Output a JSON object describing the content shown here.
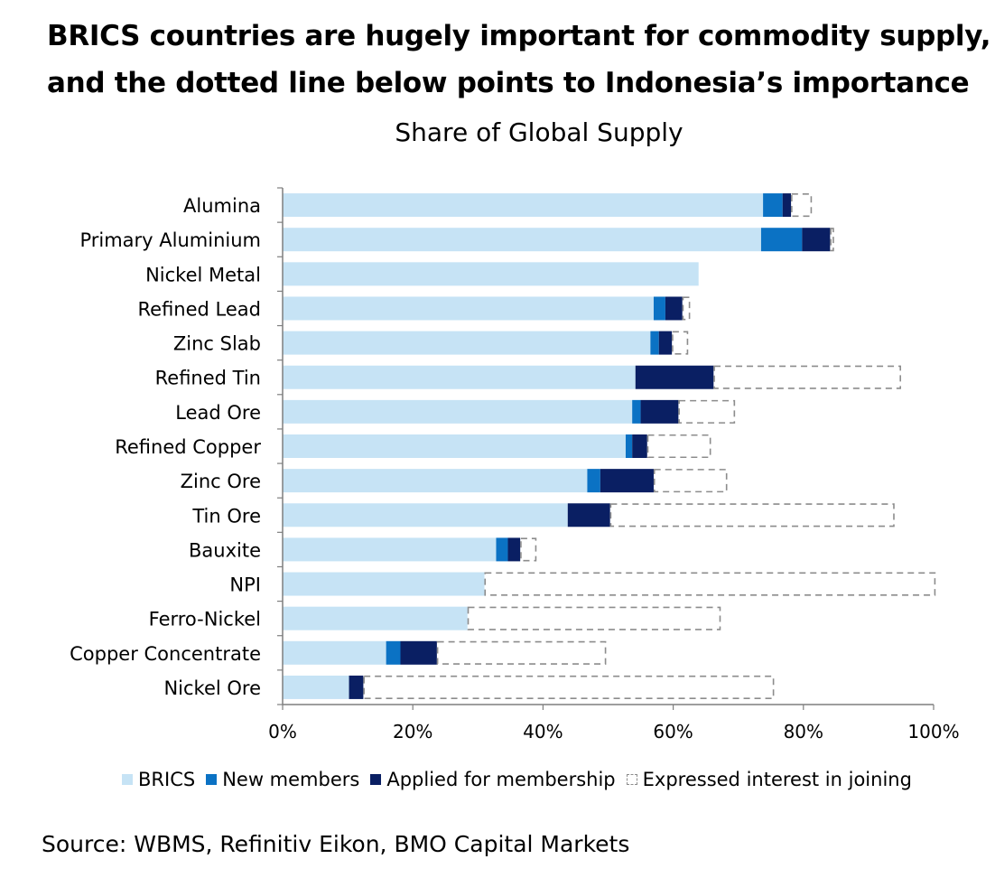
{
  "headline": {
    "line1": "BRICS countries are hugely important for commodity supply,",
    "line2": "and the dotted line below points to Indonesia’s importance"
  },
  "source": "Source: WBMS, Refinitiv Eikon, BMO Capital Markets",
  "colors": {
    "brics": "#c6e3f5",
    "new_members": "#0b72c4",
    "applied": "#0a1f63",
    "interest_border": "#8c8c8c",
    "axis": "#7f7f7f"
  },
  "chart_data": {
    "type": "bar",
    "orientation": "horizontal",
    "stacked": true,
    "title": "Share of Global Supply",
    "xlabel": "",
    "ylabel": "",
    "xlim": [
      0,
      100
    ],
    "x_ticks": [
      "0%",
      "20%",
      "40%",
      "60%",
      "80%",
      "100%"
    ],
    "x_tick_values": [
      0,
      20,
      40,
      60,
      80,
      100
    ],
    "categories": [
      "Alumina",
      "Primary Aluminium",
      "Nickel Metal",
      "Refined Lead",
      "Zinc Slab",
      "Refined Tin",
      "Lead Ore",
      "Refined Copper",
      "Zinc Ore",
      "Tin Ore",
      "Bauxite",
      "NPI",
      "Ferro-Nickel",
      "Copper Concentrate",
      "Nickel Ore"
    ],
    "series": [
      {
        "name": "BRICS",
        "key": "brics",
        "values": [
          73.8,
          73.5,
          63.9,
          57.0,
          56.5,
          54.2,
          53.7,
          52.7,
          46.8,
          43.8,
          32.8,
          31.0,
          28.4,
          15.9,
          10.2
        ]
      },
      {
        "name": "New members",
        "key": "new_members",
        "values": [
          3.0,
          6.3,
          0.0,
          1.8,
          1.3,
          0.0,
          1.3,
          1.0,
          2.0,
          0.0,
          1.8,
          0.0,
          0.0,
          2.2,
          0.0
        ]
      },
      {
        "name": "Applied for membership",
        "key": "applied",
        "values": [
          1.3,
          4.3,
          0.0,
          2.6,
          2.0,
          12.0,
          5.8,
          2.3,
          8.2,
          6.5,
          1.9,
          0.0,
          0.0,
          5.6,
          2.2
        ]
      },
      {
        "name": "Expressed interest in joining",
        "key": "interest",
        "values": [
          3.2,
          0.6,
          0.0,
          1.2,
          2.5,
          28.8,
          8.7,
          9.8,
          11.3,
          43.7,
          2.5,
          69.3,
          38.9,
          26.0,
          63.1
        ]
      }
    ],
    "legend": {
      "position": "bottom",
      "labels": [
        "BRICS",
        "New members",
        "Applied for membership",
        "Expressed interest in joining"
      ]
    }
  }
}
